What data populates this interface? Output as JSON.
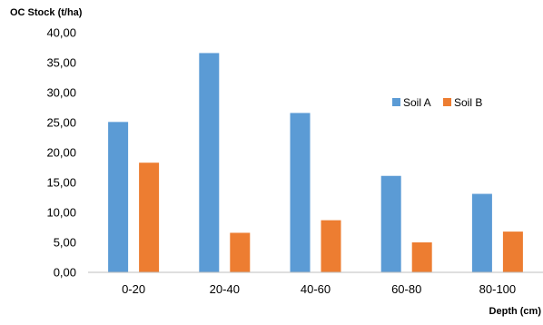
{
  "chart_data": {
    "type": "bar",
    "title": "",
    "ylabel": "OC Stock (t/ha)",
    "xlabel": "Depth (cm)",
    "categories": [
      "0-20",
      "20-40",
      "40-60",
      "60-80",
      "80-100"
    ],
    "series": [
      {
        "name": "Soil A",
        "color": "#5B9BD5",
        "values": [
          25.1,
          36.6,
          26.6,
          16.1,
          13.1
        ]
      },
      {
        "name": "Soil B",
        "color": "#ED7D31",
        "values": [
          18.3,
          6.6,
          8.7,
          5.0,
          6.8
        ]
      }
    ],
    "ylim": [
      0,
      40
    ],
    "ytick_labels": [
      "0,00",
      "5,00",
      "10,00",
      "15,00",
      "20,00",
      "25,00",
      "30,00",
      "35,00",
      "40,00"
    ],
    "grid": false,
    "legend_position": "right"
  }
}
